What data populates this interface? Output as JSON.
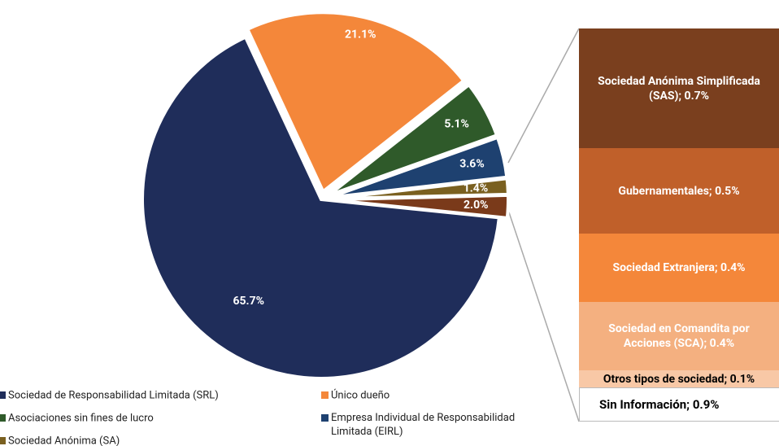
{
  "chart_data": {
    "type": "pie",
    "series": [
      {
        "name": "Sociedad de Responsabilidad Limitada (SRL)",
        "color": "#1f2d5a",
        "values": [
          65.7
        ],
        "value_labels": [
          "65.7%"
        ]
      },
      {
        "name": "Único dueño",
        "color": "#f4873a",
        "values": [
          21.1
        ],
        "value_labels": [
          "21.1%"
        ]
      },
      {
        "name": "Asociaciones sin fines de lucro",
        "color": "#2f5a2a",
        "values": [
          5.1
        ],
        "value_labels": [
          "5.1%"
        ]
      },
      {
        "name": "Empresa Individual de Responsabilidad Limitada (EIRL)",
        "color": "#1e4170",
        "values": [
          3.6
        ],
        "value_labels": [
          "3.6%"
        ]
      },
      {
        "name": "Sociedad Anónima (SA)",
        "color": "#7a6020",
        "values": [
          1.4
        ],
        "value_labels": [
          "1.4%"
        ]
      },
      {
        "name": null,
        "color": "#7a3a1a",
        "values": [
          2.0
        ],
        "value_labels": [
          "2.0%"
        ]
      }
    ],
    "breakdown": [
      {
        "label": "Sociedad Anónima Simplificada (SAS); 0.7%",
        "value": 0.7,
        "color": "#7a3f1e",
        "text_color": "#ffffff"
      },
      {
        "label": "Gubernamentales; 0.5%",
        "value": 0.5,
        "color": "#c0602a",
        "text_color": "#ffffff"
      },
      {
        "label": "Sociedad Extranjera; 0.4%",
        "value": 0.4,
        "color": "#f4873a",
        "text_color": "#ffffff"
      },
      {
        "label": "Sociedad en Comandita por Acciones (SCA); 0.4%",
        "value": 0.4,
        "color": "#f4b080",
        "text_color": "#ffffff"
      },
      {
        "label": "Otros tipos de sociedad; 0.1%",
        "value": 0.1,
        "color": "#f8c8a6",
        "text_color": "#000000"
      }
    ],
    "other": {
      "label": "Sin Información; 0.9%",
      "value": 0.9
    }
  }
}
